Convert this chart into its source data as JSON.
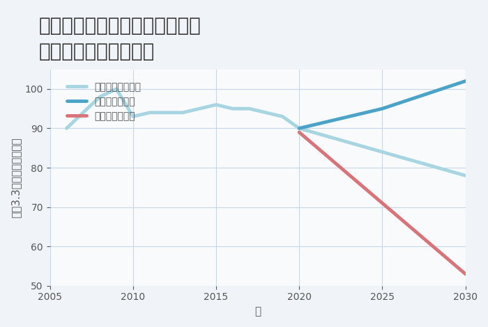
{
  "title": "兵庫県姫路市白浜町宇佐崎北の\n中古戸建ての価格推移",
  "xlabel": "年",
  "ylabel": "坪（3.3㎡）単価（万円）",
  "xlim": [
    2005,
    2030
  ],
  "ylim": [
    50,
    105
  ],
  "yticks": [
    50,
    60,
    70,
    80,
    90,
    100
  ],
  "xticks": [
    2005,
    2010,
    2015,
    2020,
    2025,
    2030
  ],
  "background_color": "#f0f4f8",
  "plot_bg_color": "#f8fafc",
  "good_scenario": {
    "x": [
      2005,
      2006,
      2007,
      2008,
      2009,
      2010,
      2011,
      2012,
      2013,
      2014,
      2015,
      2016,
      2017,
      2018,
      2019,
      2020,
      2025,
      2030
    ],
    "y": [
      null,
      null,
      null,
      null,
      null,
      null,
      null,
      null,
      null,
      null,
      null,
      null,
      null,
      null,
      null,
      90,
      95,
      102
    ],
    "color": "#4ba3c7",
    "linewidth": 3.5,
    "label": "グッドシナリオ"
  },
  "bad_scenario": {
    "x": [
      2020,
      2025,
      2030
    ],
    "y": [
      89,
      71,
      53
    ],
    "color": "#d9737a",
    "linewidth": 3.5,
    "label": "バッドシナリオ"
  },
  "normal_scenario": {
    "x": [
      2006,
      2007,
      2008,
      2009,
      2010,
      2011,
      2012,
      2013,
      2014,
      2015,
      2016,
      2017,
      2018,
      2019,
      2020,
      2025,
      2030
    ],
    "y": [
      90,
      94,
      98,
      100,
      93,
      94,
      94,
      94,
      95,
      96,
      95,
      95,
      94,
      93,
      90,
      84,
      78
    ],
    "color": "#a8d5e2",
    "linewidth": 3.5,
    "label": "ノーマルシナリオ"
  },
  "grid_color": "#c8d8e8",
  "title_fontsize": 20,
  "label_fontsize": 11,
  "tick_fontsize": 10,
  "legend_fontsize": 10
}
